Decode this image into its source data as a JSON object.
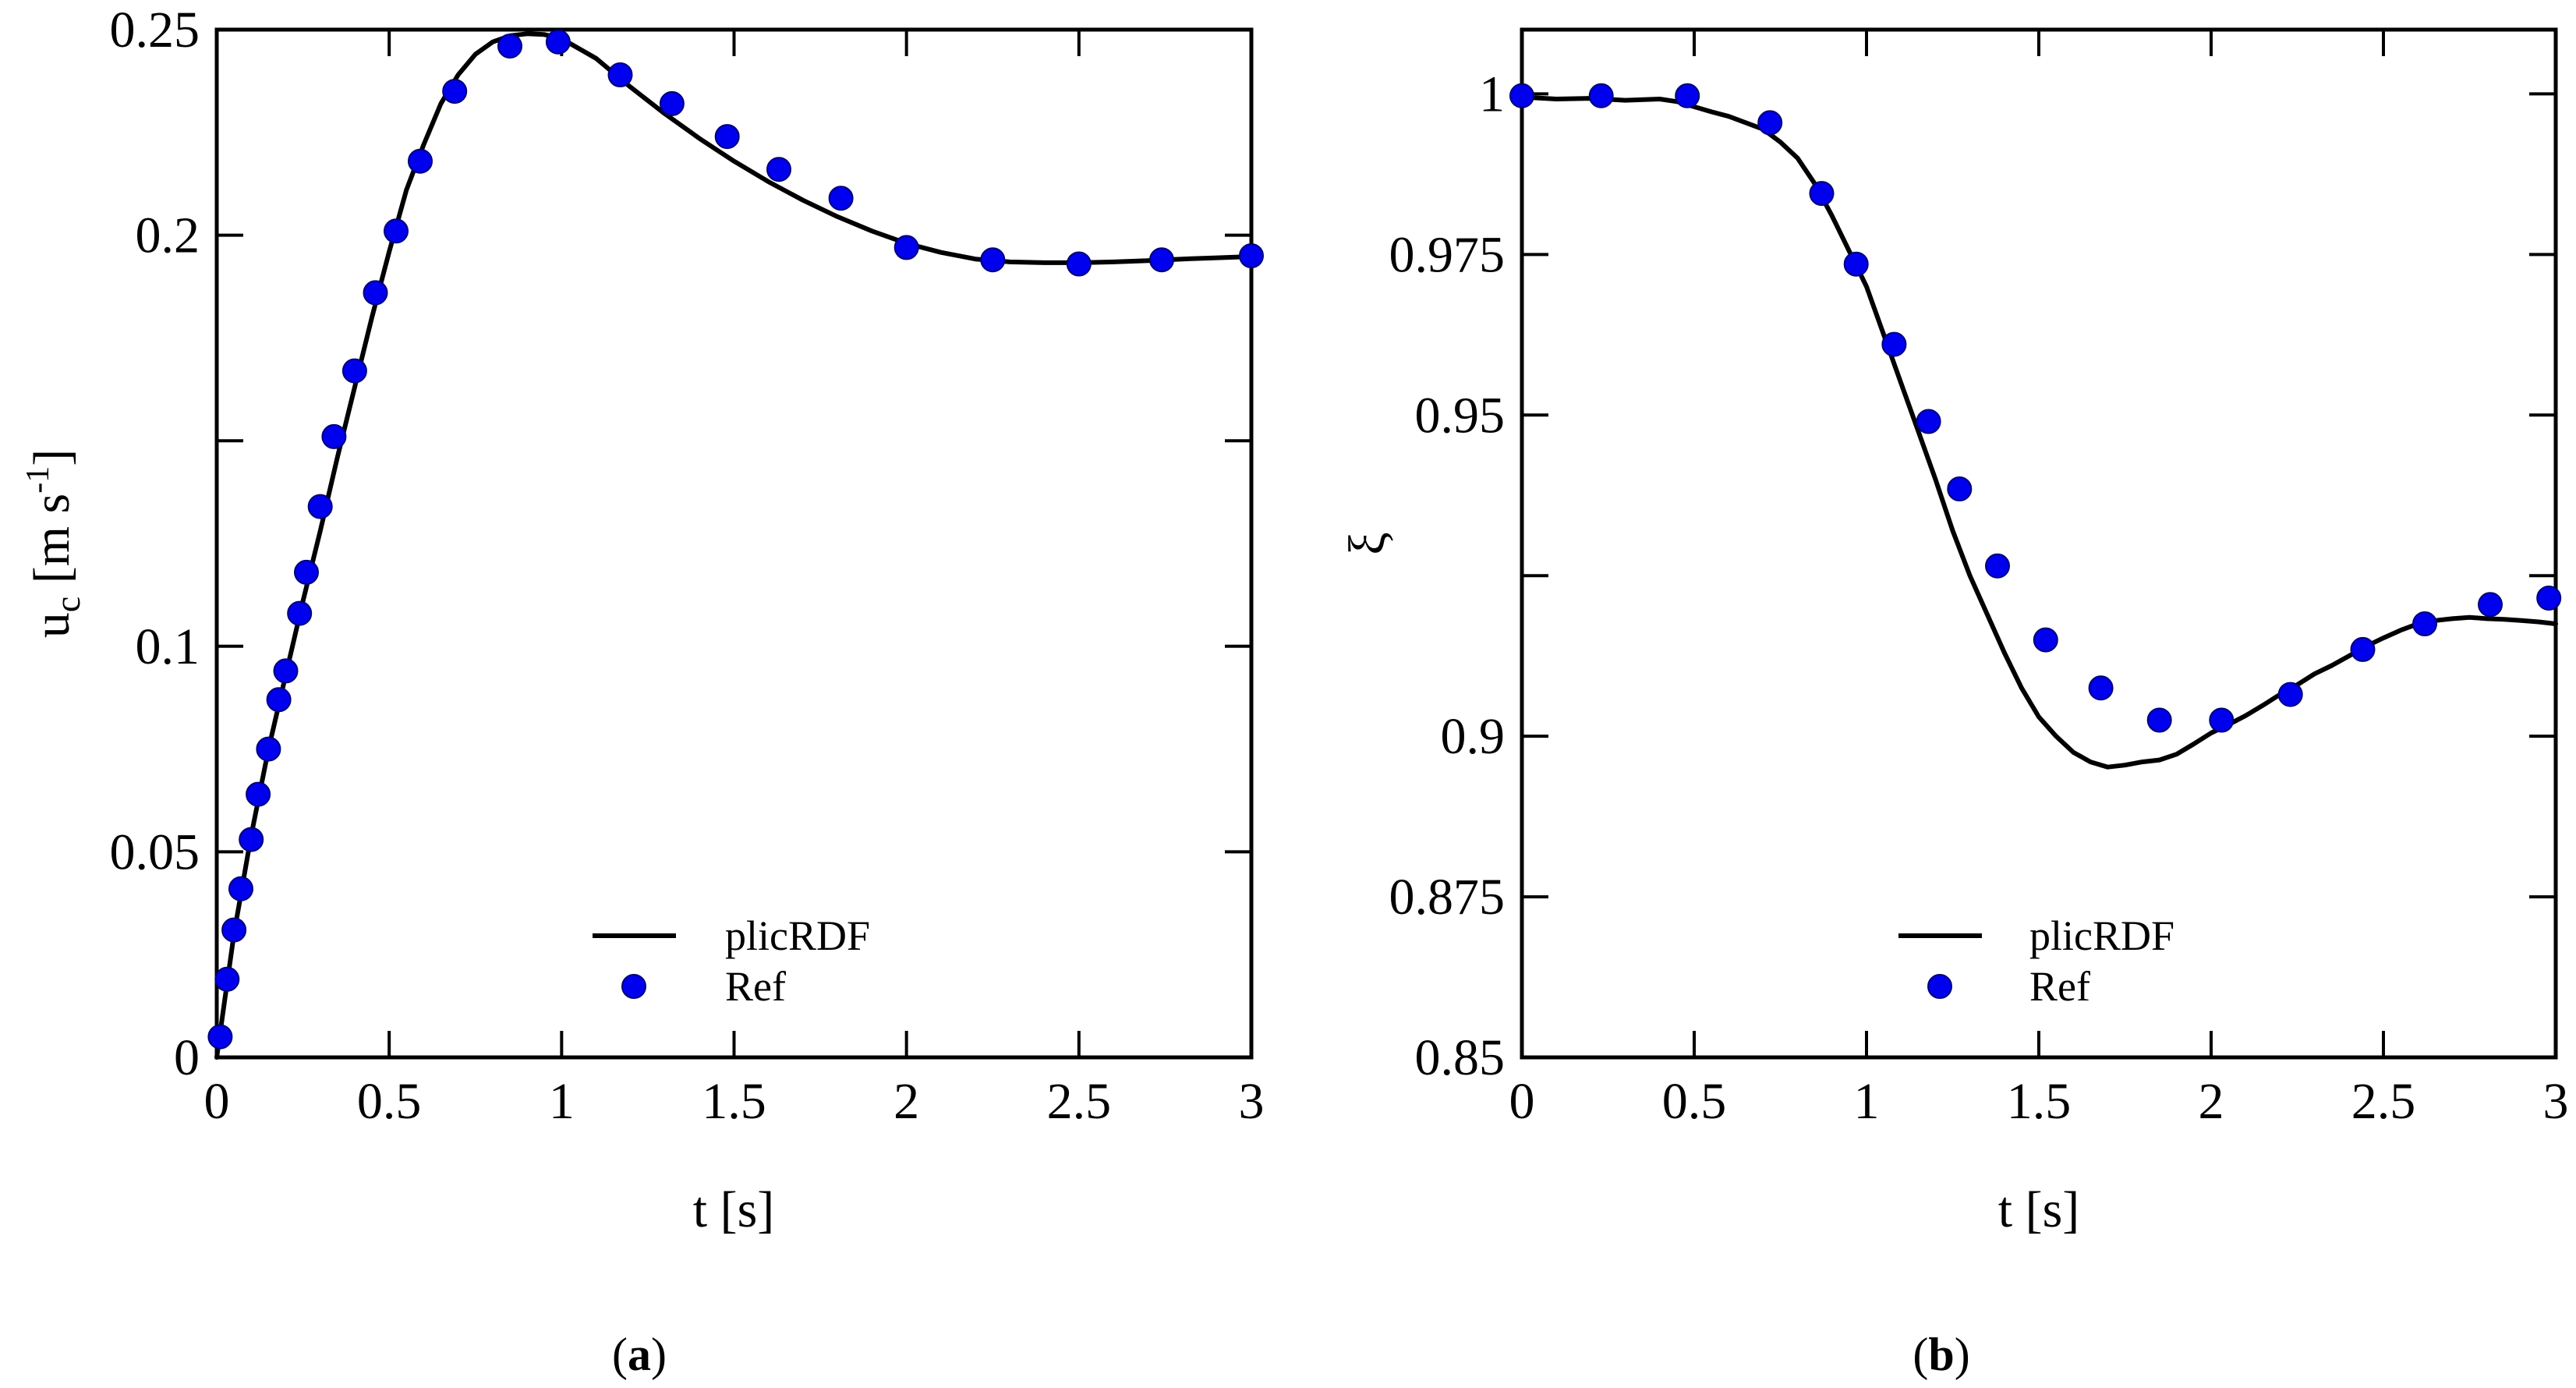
{
  "chart_data": [
    {
      "type": "line",
      "panel": "a",
      "caption": {
        "open": "(",
        "letter": "a",
        "close": ")"
      },
      "xlabel": "t [s]",
      "ylabel": {
        "main": "u",
        "sub": "c",
        "unit_open": " [m s",
        "sup": "-1",
        "unit_close": "]"
      },
      "xlim": [
        0,
        3
      ],
      "ylim": [
        0,
        0.25
      ],
      "xticks": [
        0,
        0.5,
        1,
        1.5,
        2,
        2.5,
        3
      ],
      "xtick_labels": [
        "0",
        "0.5",
        "1",
        "1.5",
        "2",
        "2.5",
        "3"
      ],
      "yticks": [
        0,
        0.05,
        0.1,
        0.2,
        0.25
      ],
      "ytick_labels": [
        "0",
        "0.05",
        "0.1",
        "0.2",
        "0.25"
      ],
      "minor_yticks": [
        0.15
      ],
      "legend": {
        "position": "bottom-center",
        "entries": [
          "plicRDF",
          "Ref"
        ]
      },
      "series": [
        {
          "name": "plicRDF",
          "style": "line",
          "color": "#000000",
          "x": [
            0,
            0.02,
            0.05,
            0.1,
            0.15,
            0.2,
            0.25,
            0.3,
            0.35,
            0.4,
            0.45,
            0.5,
            0.55,
            0.6,
            0.65,
            0.7,
            0.75,
            0.8,
            0.85,
            0.9,
            0.95,
            1.0,
            1.1,
            1.2,
            1.3,
            1.4,
            1.5,
            1.6,
            1.7,
            1.8,
            1.9,
            2.0,
            2.1,
            2.2,
            2.3,
            2.4,
            2.5,
            2.6,
            2.7,
            2.8,
            2.9,
            3.0
          ],
          "y": [
            0,
            0.012,
            0.03,
            0.054,
            0.075,
            0.093,
            0.111,
            0.128,
            0.146,
            0.163,
            0.18,
            0.196,
            0.211,
            0.222,
            0.232,
            0.239,
            0.244,
            0.247,
            0.2485,
            0.249,
            0.2488,
            0.2478,
            0.243,
            0.236,
            0.2295,
            0.2235,
            0.218,
            0.213,
            0.2085,
            0.2045,
            0.201,
            0.198,
            0.1958,
            0.1942,
            0.1935,
            0.1933,
            0.1933,
            0.1935,
            0.1938,
            0.1942,
            0.1945,
            0.1948
          ]
        },
        {
          "name": "Ref",
          "style": "marker",
          "color": "#0000ee",
          "x": [
            0.01,
            0.03,
            0.05,
            0.07,
            0.1,
            0.12,
            0.15,
            0.18,
            0.2,
            0.24,
            0.26,
            0.3,
            0.34,
            0.4,
            0.46,
            0.52,
            0.59,
            0.69,
            0.85,
            0.99,
            1.17,
            1.32,
            1.48,
            1.63,
            1.81,
            2.0,
            2.25,
            2.5,
            2.74,
            3.0
          ],
          "y": [
            0.005,
            0.019,
            0.031,
            0.041,
            0.053,
            0.064,
            0.075,
            0.087,
            0.094,
            0.108,
            0.118,
            0.134,
            0.151,
            0.167,
            0.186,
            0.201,
            0.218,
            0.235,
            0.246,
            0.247,
            0.239,
            0.232,
            0.224,
            0.216,
            0.209,
            0.197,
            0.194,
            0.193,
            0.194,
            0.195
          ]
        }
      ]
    },
    {
      "type": "line",
      "panel": "b",
      "caption": {
        "open": "(",
        "letter": "b",
        "close": ")"
      },
      "xlabel": "t [s]",
      "ylabel": {
        "main": "ξ"
      },
      "xlim": [
        0,
        3
      ],
      "ylim": [
        0.85,
        1.01
      ],
      "xticks": [
        0,
        0.5,
        1,
        1.5,
        2,
        2.5,
        3
      ],
      "xtick_labels": [
        "0",
        "0.5",
        "1",
        "1.5",
        "2",
        "2.5",
        "3"
      ],
      "yticks": [
        0.85,
        0.875,
        0.9,
        0.95,
        0.975,
        1
      ],
      "ytick_labels": [
        "0.85",
        "0.875",
        "0.9",
        "0.95",
        "0.975",
        "1"
      ],
      "minor_yticks": [
        0.925
      ],
      "legend": {
        "position": "bottom-center",
        "entries": [
          "plicRDF",
          "Ref"
        ]
      },
      "series": [
        {
          "name": "plicRDF",
          "style": "line",
          "color": "#000000",
          "x": [
            0,
            0.1,
            0.2,
            0.3,
            0.4,
            0.45,
            0.5,
            0.55,
            0.6,
            0.65,
            0.7,
            0.75,
            0.8,
            0.85,
            0.9,
            0.95,
            1.0,
            1.05,
            1.1,
            1.15,
            1.2,
            1.25,
            1.3,
            1.35,
            1.4,
            1.45,
            1.5,
            1.55,
            1.6,
            1.65,
            1.7,
            1.75,
            1.8,
            1.85,
            1.9,
            1.95,
            2.0,
            2.05,
            2.1,
            2.15,
            2.2,
            2.25,
            2.3,
            2.35,
            2.4,
            2.45,
            2.5,
            2.55,
            2.6,
            2.65,
            2.7,
            2.75,
            2.8,
            2.85,
            2.9,
            2.95,
            3.0
          ],
          "y": [
            0.9995,
            0.9992,
            0.9993,
            0.999,
            0.9992,
            0.9988,
            0.998,
            0.9972,
            0.9965,
            0.9955,
            0.9945,
            0.9925,
            0.99,
            0.986,
            0.981,
            0.9755,
            0.97,
            0.9625,
            0.955,
            0.9475,
            0.94,
            0.932,
            0.925,
            0.919,
            0.913,
            0.9075,
            0.903,
            0.9,
            0.8975,
            0.896,
            0.8952,
            0.8955,
            0.896,
            0.8963,
            0.8972,
            0.8988,
            0.9005,
            0.9018,
            0.9032,
            0.9048,
            0.9065,
            0.908,
            0.9097,
            0.911,
            0.9125,
            0.914,
            0.9153,
            0.9165,
            0.9175,
            0.918,
            0.9183,
            0.9185,
            0.9183,
            0.9182,
            0.918,
            0.9178,
            0.9175
          ]
        },
        {
          "name": "Ref",
          "style": "marker",
          "color": "#0000ee",
          "x": [
            0,
            0.23,
            0.48,
            0.72,
            0.87,
            0.97,
            1.08,
            1.18,
            1.27,
            1.38,
            1.52,
            1.68,
            1.85,
            2.03,
            2.23,
            2.44,
            2.62,
            2.81,
            2.98
          ],
          "y": [
            0.9997,
            0.9997,
            0.9997,
            0.9955,
            0.9845,
            0.9735,
            0.961,
            0.949,
            0.9385,
            0.9265,
            0.915,
            0.9075,
            0.9025,
            0.9025,
            0.9065,
            0.9135,
            0.9175,
            0.9205,
            0.9215
          ]
        }
      ]
    }
  ]
}
